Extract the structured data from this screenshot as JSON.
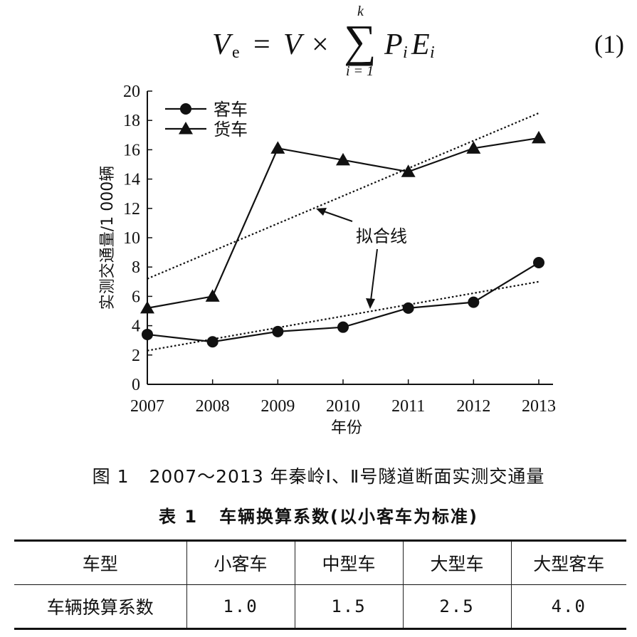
{
  "equation": {
    "lhs_var": "V",
    "lhs_sub": "e",
    "equals": "=",
    "rhs_var": "V",
    "times": "×",
    "sum_symbol": "∑",
    "sum_upper": "k",
    "sum_lower": "i = 1",
    "p_var": "P",
    "p_sub": "i",
    "e_var": "E",
    "e_sub": "i",
    "number": "(1)"
  },
  "figure_caption": {
    "number": "图 1",
    "text": "2007～2013 年秦岭Ⅰ、Ⅱ号隧道断面实测交通量"
  },
  "chart_data": {
    "type": "line",
    "title": "",
    "xlabel": "年份",
    "ylabel": "实测交通量/1 000辆",
    "x": [
      2007,
      2008,
      2009,
      2010,
      2011,
      2012,
      2013
    ],
    "xlim": [
      2007,
      2013
    ],
    "ylim": [
      0,
      20
    ],
    "yticks": [
      0,
      2,
      4,
      6,
      8,
      10,
      12,
      14,
      16,
      18,
      20
    ],
    "grid": false,
    "legend_position": "top-left",
    "series": [
      {
        "name": "客车",
        "marker": "circle",
        "values": [
          3.4,
          2.9,
          3.6,
          3.9,
          5.2,
          5.6,
          8.3
        ]
      },
      {
        "name": "货车",
        "marker": "triangle",
        "values": [
          5.2,
          6.0,
          16.1,
          15.3,
          14.5,
          16.1,
          16.8
        ]
      }
    ],
    "fit_lines": [
      {
        "for": "货车",
        "x": [
          2007,
          2013
        ],
        "values": [
          7.2,
          18.5
        ],
        "style": "dotted"
      },
      {
        "for": "客车",
        "x": [
          2007,
          2013
        ],
        "values": [
          2.3,
          7.0
        ],
        "style": "dotted"
      }
    ],
    "annotation": {
      "text": "拟合线"
    },
    "colors": {
      "ink": "#111111",
      "background": "#ffffff"
    }
  },
  "table_caption": {
    "number": "表 1",
    "text": "车辆换算系数(以小客车为标准)"
  },
  "table": {
    "headers": [
      "车型",
      "小客车",
      "中型车",
      "大型车",
      "大型客车"
    ],
    "rows": [
      [
        "车辆换算系数",
        "1.0",
        "1.5",
        "2.5",
        "4.0"
      ]
    ]
  }
}
